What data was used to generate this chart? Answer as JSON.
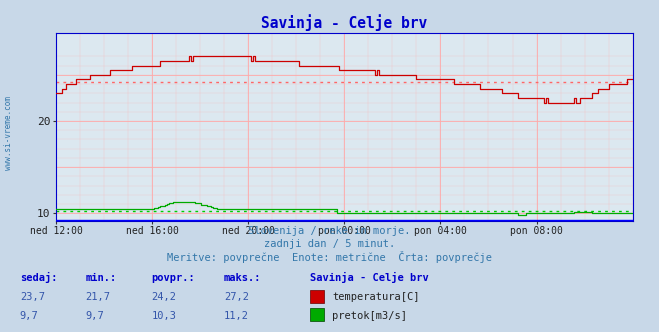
{
  "title": "Savinja - Celje brv",
  "title_color": "#0000cc",
  "fig_bg_color": "#c8d8e8",
  "plot_bg_color": "#dce8f0",
  "xlabel_ticks": [
    "ned 12:00",
    "ned 16:00",
    "ned 20:00",
    "pon 00:00",
    "pon 04:00",
    "pon 08:00"
  ],
  "yticks": [
    10,
    20
  ],
  "ylim_bottom": 9.2,
  "ylim_top": 29.5,
  "xlim": [
    0,
    287
  ],
  "n_points": 288,
  "avg_temp": 24.2,
  "avg_flow": 10.3,
  "footer_line1": "Slovenija / reke in morje.",
  "footer_line2": "zadnji dan / 5 minut.",
  "footer_line3": "Meritve: povprečne  Enote: metrične  Črta: povprečje",
  "footer_color": "#3377aa",
  "watermark": "www.si-vreme.com",
  "table_headers": [
    "sedaj:",
    "min.:",
    "povpr.:",
    "maks.:"
  ],
  "table_header_color": "#0000cc",
  "station_name": "Savinja - Celje brv",
  "row1_values": [
    "23,7",
    "21,7",
    "24,2",
    "27,2"
  ],
  "row2_values": [
    "9,7",
    "9,7",
    "10,3",
    "11,2"
  ],
  "legend_temp": "temperatura[C]",
  "legend_flow": "pretok[m3/s]",
  "temp_color": "#cc0000",
  "flow_color": "#00aa00",
  "avg_temp_line_color": "#ff6666",
  "avg_flow_line_color": "#00cc00",
  "axis_color": "#0000cc",
  "grid_color": "#ffaaaa",
  "bottom_line_color": "#0000ff",
  "right_arrow_color": "#cc0000",
  "value_color": "#3355aa",
  "watermark_color": "#3377aa"
}
